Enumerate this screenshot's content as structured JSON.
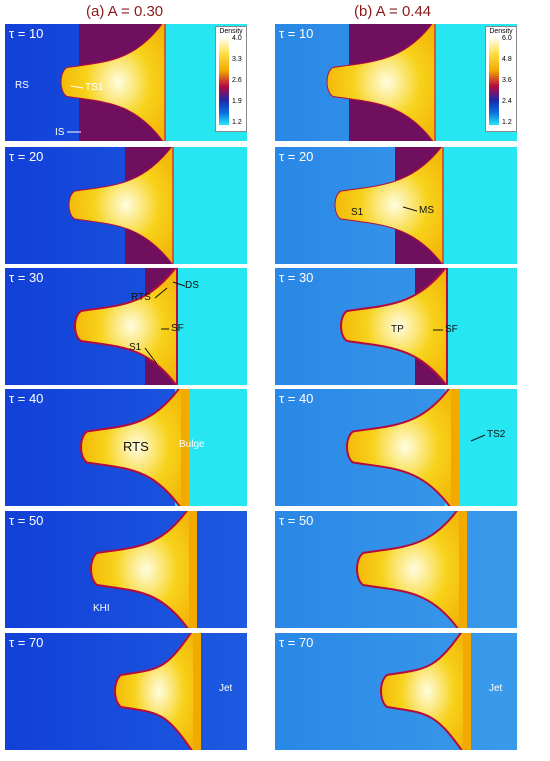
{
  "columns": [
    {
      "title": "(a) A = 0.30",
      "colorbar": {
        "title": "Density",
        "ticks": [
          "4.0",
          "3.3",
          "2.6",
          "1.9",
          "1.2"
        ]
      },
      "panels": [
        {
          "tau": "τ = 10",
          "labels": [
            "RS",
            "TS1",
            "IS"
          ]
        },
        {
          "tau": "τ = 20",
          "labels": []
        },
        {
          "tau": "τ = 30",
          "labels": [
            "RTS",
            "DS",
            "SF",
            "S1"
          ]
        },
        {
          "tau": "τ = 40",
          "labels": [
            "RTS",
            "Bulge"
          ]
        },
        {
          "tau": "τ = 50",
          "labels": [
            "KHI"
          ]
        },
        {
          "tau": "τ = 70",
          "labels": [
            "Jet"
          ]
        }
      ]
    },
    {
      "title": "(b) A = 0.44",
      "colorbar": {
        "title": "Density",
        "ticks": [
          "6.0",
          "4.8",
          "3.6",
          "2.4",
          "1.2"
        ]
      },
      "panels": [
        {
          "tau": "τ = 10",
          "labels": []
        },
        {
          "tau": "τ = 20",
          "labels": [
            "S1",
            "MS"
          ]
        },
        {
          "tau": "τ = 30",
          "labels": [
            "TP",
            "SF"
          ]
        },
        {
          "tau": "τ = 40",
          "labels": [
            "TS2"
          ]
        },
        {
          "tau": "τ = 50",
          "labels": []
        },
        {
          "tau": "τ = 70",
          "labels": [
            "Jet"
          ]
        }
      ]
    }
  ],
  "colors": {
    "purple": "#6f0f5e",
    "cyan": "#26e6f2",
    "blue": "#0b3fe0",
    "bluelight": "#1e8ae6",
    "yellow": "#f7d21a",
    "orange": "#f2a900",
    "white": "#fffde0",
    "red": "#b40b3f",
    "title": "#8b1a1a"
  }
}
